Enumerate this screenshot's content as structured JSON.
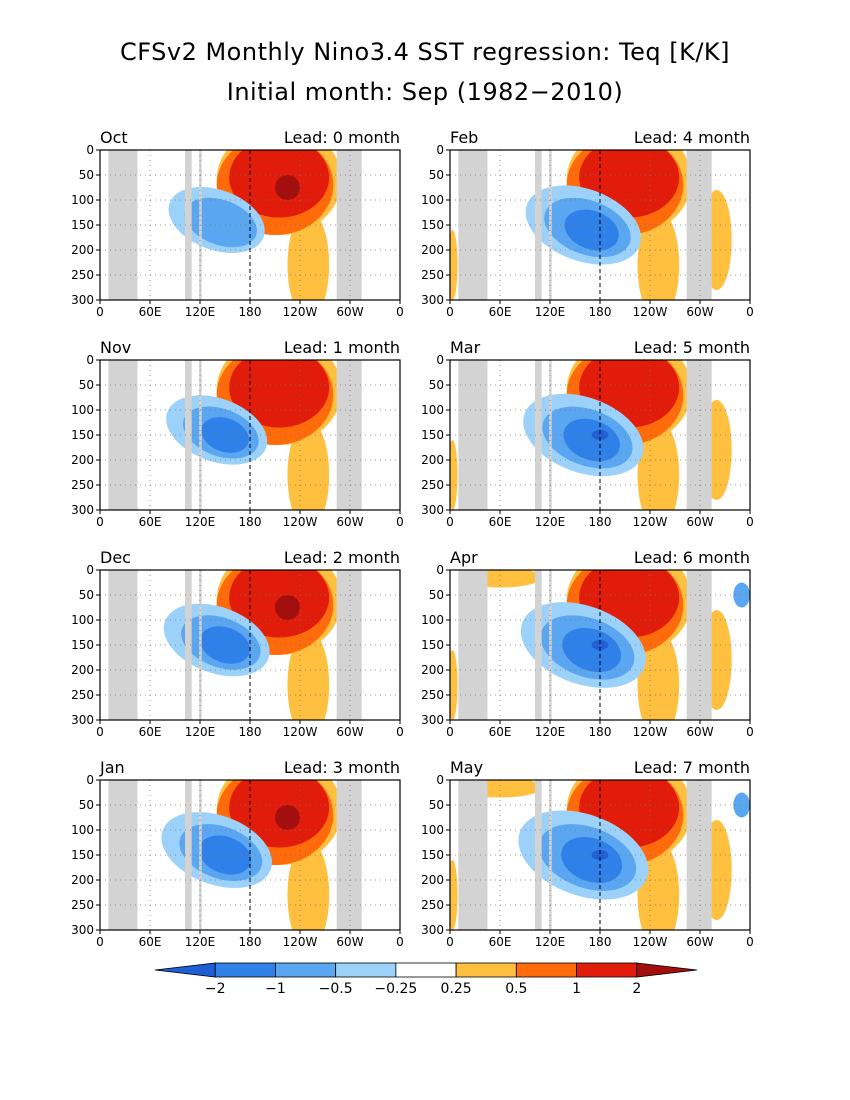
{
  "title": "CFSv2 Monthly Nino3.4 SST regression: Teq [K/K]",
  "subtitle": "Initial month: Sep (1982−2010)",
  "lead_prefix": "Lead: ",
  "lead_suffix": " month",
  "chart_data": {
    "type": "heatmap",
    "x_ticks": [
      "0",
      "60E",
      "120E",
      "180",
      "120W",
      "60W",
      "0"
    ],
    "y_ticks": [
      "0",
      "50",
      "100",
      "150",
      "200",
      "250",
      "300"
    ],
    "xlim": [
      0,
      360
    ],
    "ylim": [
      300,
      0
    ],
    "grid": true,
    "panels": [
      {
        "month": "Oct",
        "lead": "0"
      },
      {
        "month": "Nov",
        "lead": "1"
      },
      {
        "month": "Dec",
        "lead": "2"
      },
      {
        "month": "Jan",
        "lead": "3"
      },
      {
        "month": "Feb",
        "lead": "4"
      },
      {
        "month": "Mar",
        "lead": "5"
      },
      {
        "month": "Apr",
        "lead": "6"
      },
      {
        "month": "May",
        "lead": "7"
      }
    ],
    "colorbar": {
      "labels": [
        "−2",
        "−1",
        "−0.5",
        "−0.25",
        "0.25",
        "0.5",
        "1",
        "2"
      ],
      "colors": [
        "#1f5fd6",
        "#2f80e8",
        "#5aa6f0",
        "#9cd2fa",
        "#ffffff",
        "#ffbf3f",
        "#ff6a0a",
        "#e11c0a",
        "#a30f0f"
      ]
    },
    "colors": {
      "land_mask": "#d3d3d3",
      "neg1": "#9cd2fa",
      "neg2": "#5aa6f0",
      "neg3": "#2f80e8",
      "neg4": "#1f5fd6",
      "pos1": "#ffbf3f",
      "pos2": "#ff6a0a",
      "pos3": "#e11c0a",
      "pos4": "#a30f0f"
    }
  }
}
